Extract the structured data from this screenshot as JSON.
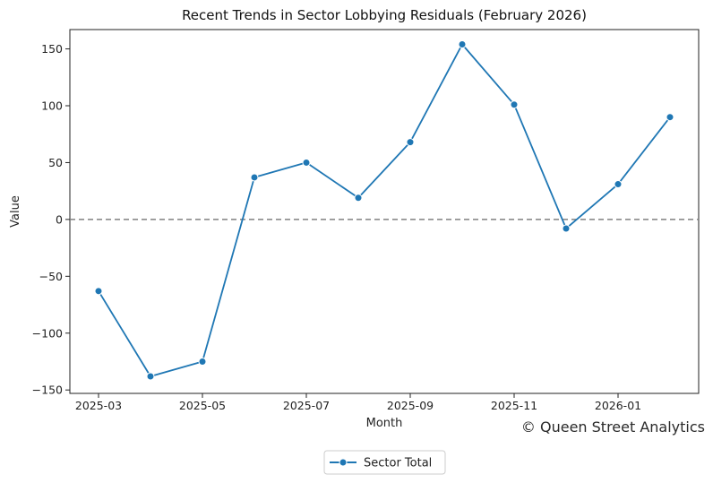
{
  "chart_data": {
    "type": "line",
    "title": "Recent Trends in Sector Lobbying Residuals (February 2026)",
    "xlabel": "Month",
    "ylabel": "Value",
    "x": [
      "2025-03",
      "2025-04",
      "2025-05",
      "2025-06",
      "2025-07",
      "2025-08",
      "2025-09",
      "2025-10",
      "2025-11",
      "2025-12",
      "2026-01",
      "2026-02"
    ],
    "x_ticks": [
      "2025-03",
      "2025-05",
      "2025-07",
      "2025-09",
      "2025-11",
      "2026-01"
    ],
    "y_ticks": [
      -150,
      -100,
      -50,
      0,
      50,
      100,
      150
    ],
    "ylim": [
      -153,
      167
    ],
    "series": [
      {
        "name": "Sector Total",
        "color": "#1f77b4",
        "marker": "circle",
        "values": [
          -63,
          -138,
          -125,
          37,
          50,
          19,
          68,
          154,
          101,
          -8,
          31,
          90
        ]
      }
    ],
    "reference_line": {
      "y": 0,
      "style": "dashed",
      "color": "#808080"
    },
    "legend": {
      "position": "bottom-center",
      "entries": [
        "Sector Total"
      ]
    },
    "grid": false,
    "credit": "© Queen Street Analytics"
  }
}
